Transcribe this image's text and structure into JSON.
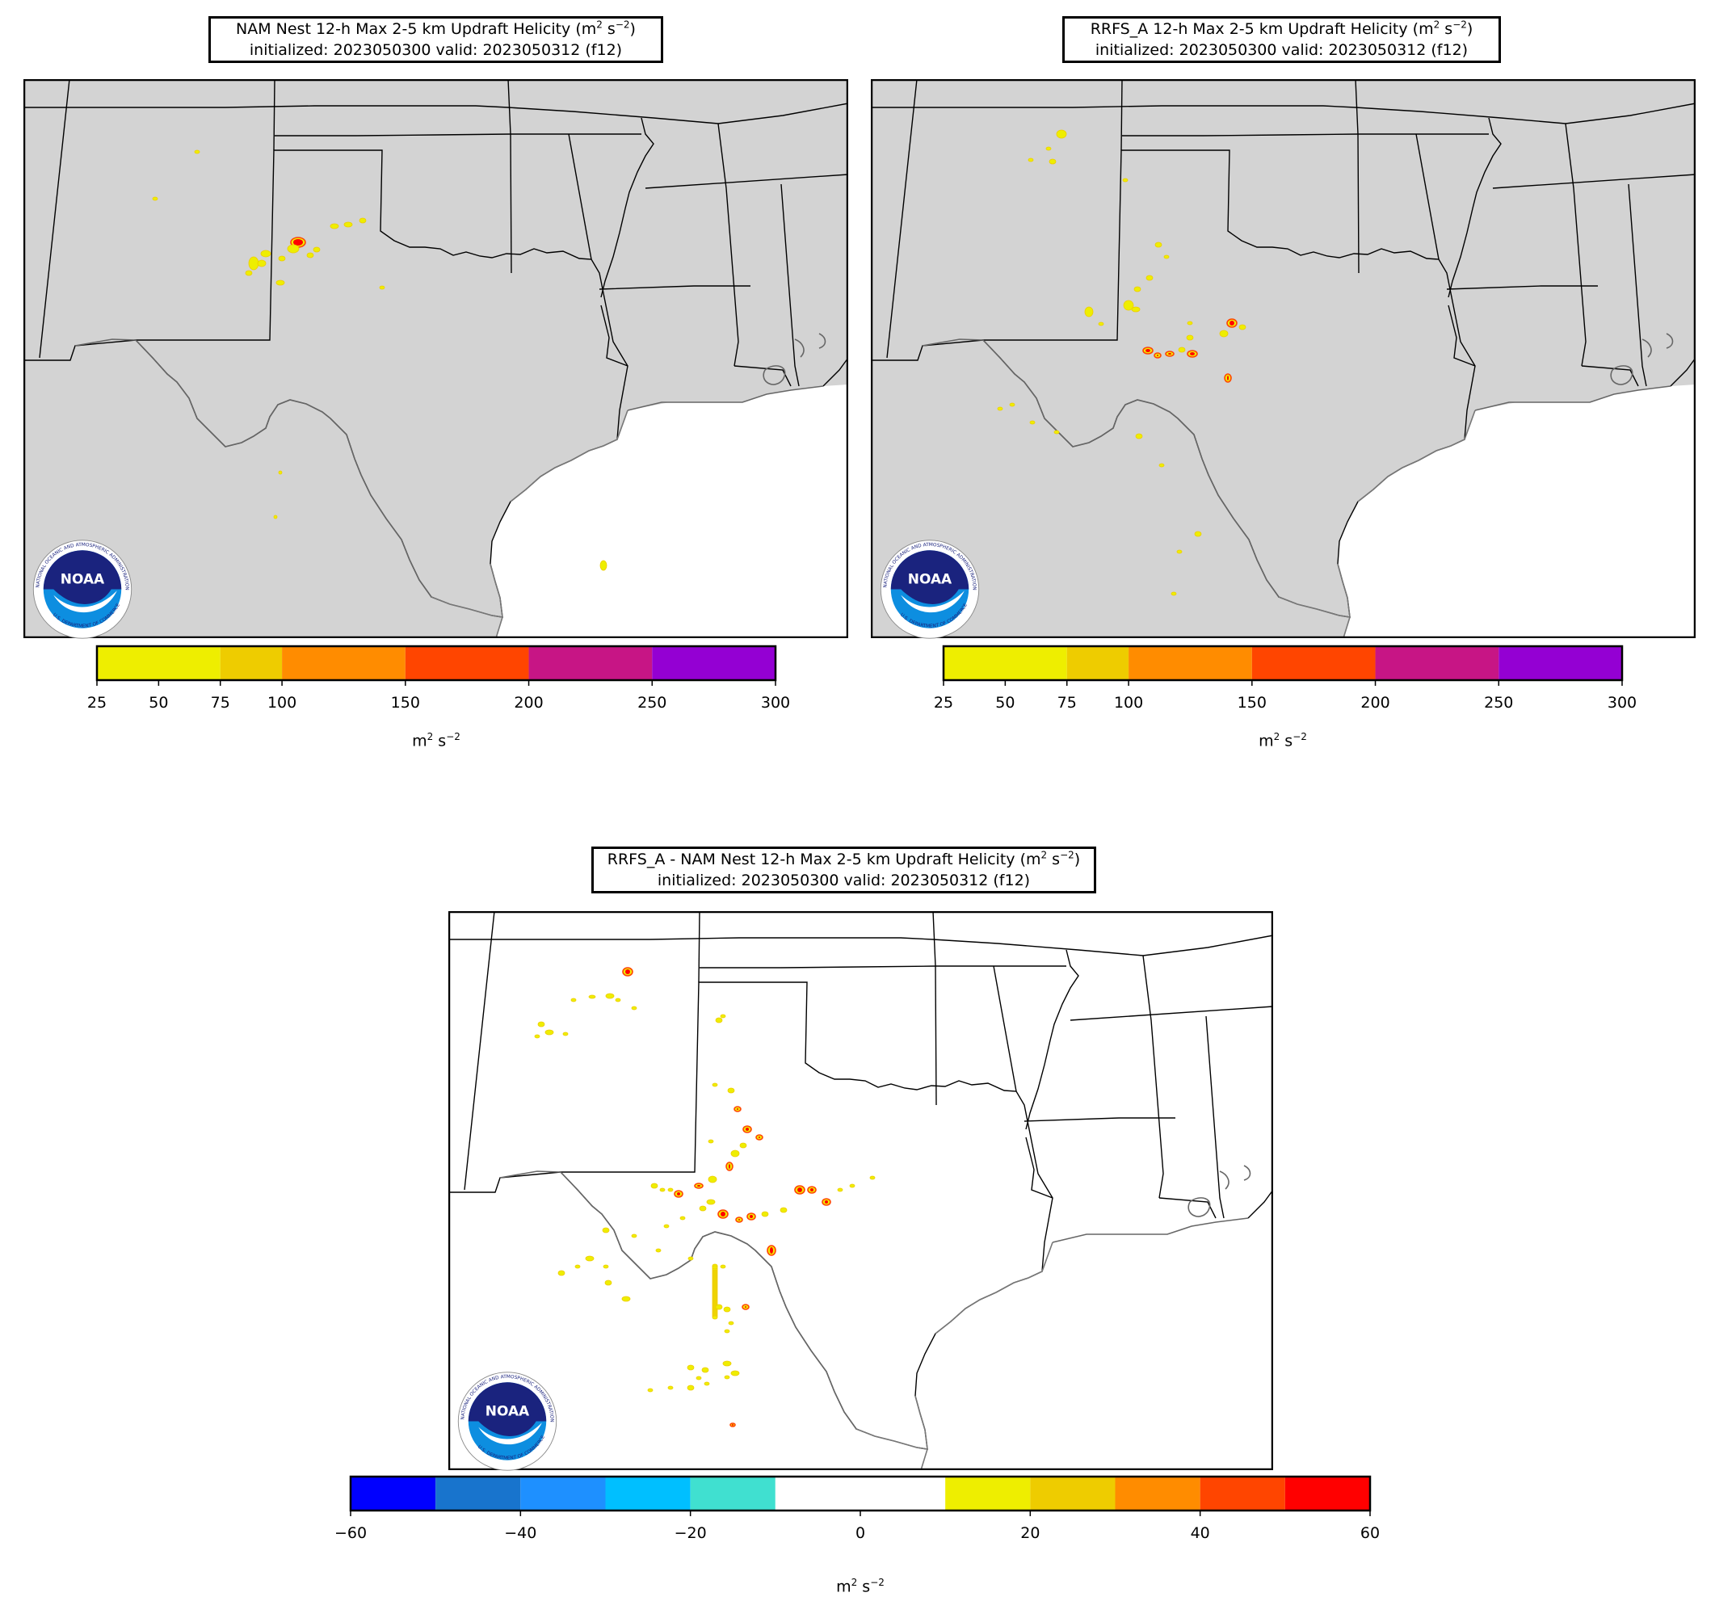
{
  "figure": {
    "panels": [
      {
        "id": "nam",
        "title_main": "NAM Nest 12-h Max 2-5 km Updraft Helicity (m",
        "title_sup1": "2",
        "title_mid": " s",
        "title_sup2": "−2",
        "title_end": ")",
        "title_line2": "initialized: 2023050300 valid: 2023050312 (f12)"
      },
      {
        "id": "rrfs",
        "title_main": "RRFS_A 12-h Max 2-5 km Updraft Helicity (m",
        "title_sup1": "2",
        "title_mid": " s",
        "title_sup2": "−2",
        "title_end": ")",
        "title_line2": "initialized: 2023050300 valid: 2023050312 (f12)"
      },
      {
        "id": "diff",
        "title_main": "RRFS_A - NAM Nest 12-h Max 2-5 km Updraft Helicity (m",
        "title_sup1": "2",
        "title_mid": " s",
        "title_sup2": "−2",
        "title_end": ")",
        "title_line2": "initialized: 2023050300 valid: 2023050312 (f12)"
      }
    ],
    "colorbars": {
      "uh": {
        "levels": [
          25,
          75,
          100,
          150,
          200,
          250,
          300
        ],
        "ticks": [
          "25",
          "50",
          "75",
          "100",
          "150",
          "200",
          "250",
          "300"
        ],
        "colors": [
          "#eeee00",
          "#eecc00",
          "#ff8c00",
          "#ff4500",
          "#c71585",
          "#9400d3"
        ],
        "unit_base": "m",
        "unit_sup1": "2",
        "unit_mid": " s",
        "unit_sup2": "−2"
      },
      "diff": {
        "levels": [
          -60,
          -50,
          -40,
          -30,
          -20,
          -10,
          10,
          20,
          30,
          40,
          50,
          60
        ],
        "ticks": [
          "−60",
          "−40",
          "−20",
          "0",
          "20",
          "40",
          "60"
        ],
        "colors": [
          "#0000ff",
          "#1874cd",
          "#1e90ff",
          "#00bfff",
          "#40e0d0",
          "#ffffff",
          "#eeee00",
          "#eecc00",
          "#ff8c00",
          "#ff4500",
          "#ff0000"
        ],
        "unit_base": "m",
        "unit_sup1": "2",
        "unit_mid": " s",
        "unit_sup2": "−2"
      }
    },
    "logo": {
      "name": "NOAA",
      "ring_text": "NATIONAL OCEANIC AND ATMOSPHERIC ADMINISTRATION",
      "ring_text_bottom": "U.S. DEPARTMENT OF COMMERCE"
    },
    "colors": {
      "land_fill_panels": "#d3d3d3",
      "ocean": "#ffffff",
      "state_border": "#000000",
      "coastline": "#666666",
      "noaa_dark": "#1a237e",
      "noaa_light": "#0d8ee0"
    }
  }
}
